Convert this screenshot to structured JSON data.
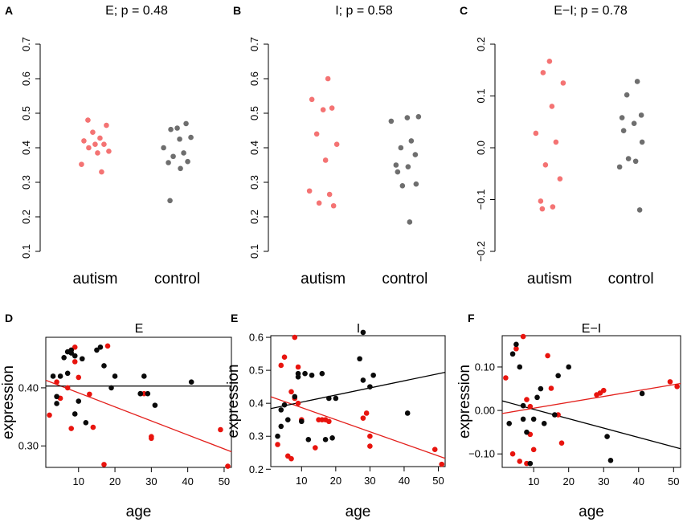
{
  "figure": {
    "colors": {
      "autism": "#f25a5a",
      "control": "#555555",
      "regression_red": "#e3201c",
      "regression_black": "#000000",
      "red_point": "#e8140e",
      "black_point": "#0a0a0a"
    }
  },
  "chart_data": [
    {
      "panel": "A",
      "type": "scatter",
      "title": "E; p = 0.48",
      "categories": [
        "autism",
        "control"
      ],
      "ylim": [
        0.1,
        0.7
      ],
      "yticks": [
        "0.1",
        "0.2",
        "0.3",
        "0.4",
        "0.5",
        "0.6",
        "0.7"
      ],
      "series": [
        {
          "name": "autism",
          "values": [
            0.48,
            0.465,
            0.445,
            0.428,
            0.42,
            0.41,
            0.41,
            0.4,
            0.39,
            0.385,
            0.352,
            0.33
          ]
        },
        {
          "name": "control",
          "values": [
            0.47,
            0.457,
            0.453,
            0.43,
            0.425,
            0.4,
            0.385,
            0.375,
            0.36,
            0.357,
            0.34,
            0.247
          ]
        }
      ]
    },
    {
      "panel": "B",
      "type": "scatter",
      "title": "I; p = 0.58",
      "categories": [
        "autism",
        "control"
      ],
      "ylim": [
        0.1,
        0.7
      ],
      "yticks": [
        "0.1",
        "0.2",
        "0.3",
        "0.4",
        "0.5",
        "0.6",
        "0.7"
      ],
      "series": [
        {
          "name": "autism",
          "values": [
            0.6,
            0.54,
            0.515,
            0.51,
            0.44,
            0.41,
            0.364,
            0.275,
            0.265,
            0.24,
            0.232
          ]
        },
        {
          "name": "control",
          "values": [
            0.49,
            0.487,
            0.477,
            0.42,
            0.4,
            0.38,
            0.35,
            0.345,
            0.33,
            0.295,
            0.29,
            0.185
          ]
        }
      ]
    },
    {
      "panel": "C",
      "type": "scatter",
      "title": "E−I; p = 0.78",
      "categories": [
        "autism",
        "control"
      ],
      "ylim": [
        -0.2,
        0.2
      ],
      "yticks": [
        "−0.2",
        "−0.1",
        "0.0",
        "0.1",
        "0.2"
      ],
      "series": [
        {
          "name": "autism",
          "values": [
            0.167,
            0.145,
            0.125,
            0.08,
            0.028,
            0.011,
            -0.033,
            -0.06,
            -0.103,
            -0.114,
            -0.118
          ]
        },
        {
          "name": "control",
          "values": [
            0.128,
            0.102,
            0.063,
            0.058,
            0.047,
            0.033,
            0.011,
            -0.021,
            -0.026,
            -0.037,
            -0.12
          ]
        }
      ]
    },
    {
      "panel": "D",
      "type": "scatter",
      "title": "E",
      "xlabel": "age",
      "ylabel": "expression",
      "xlim": [
        1,
        52
      ],
      "ylim": [
        0.263,
        0.487
      ],
      "xticks": [
        "10",
        "20",
        "30",
        "40",
        "50"
      ],
      "yticks": [
        "0.30",
        "0.40"
      ],
      "series": [
        {
          "name": "red",
          "x": [
            2,
            4,
            5,
            7,
            8,
            8,
            9,
            9,
            10,
            13,
            14,
            17,
            18,
            28,
            30,
            30,
            49,
            51
          ],
          "y": [
            0.353,
            0.41,
            0.382,
            0.4,
            0.33,
            0.465,
            0.47,
            0.445,
            0.418,
            0.389,
            0.332,
            0.268,
            0.472,
            0.39,
            0.316,
            0.313,
            0.328,
            0.265
          ]
        },
        {
          "name": "black",
          "x": [
            3,
            4,
            4,
            5,
            6,
            7,
            7,
            8,
            8,
            9,
            9,
            10,
            11,
            12,
            15,
            16,
            17,
            19,
            20,
            27,
            27,
            28,
            29,
            31,
            41
          ],
          "y": [
            0.42,
            0.385,
            0.373,
            0.42,
            0.452,
            0.425,
            0.462,
            0.46,
            0.465,
            0.355,
            0.455,
            0.377,
            0.45,
            0.34,
            0.465,
            0.47,
            0.438,
            0.4,
            0.42,
            0.39,
            0.39,
            0.42,
            0.39,
            0.37,
            0.41
          ]
        }
      ],
      "regression_lines": [
        {
          "name": "red",
          "x": [
            1,
            52
          ],
          "y": [
            0.413,
            0.29
          ]
        },
        {
          "name": "black",
          "x": [
            1,
            52
          ],
          "y": [
            0.403,
            0.403
          ]
        }
      ]
    },
    {
      "panel": "E",
      "type": "scatter",
      "title": "I",
      "xlabel": "age",
      "ylabel": "expression",
      "xlim": [
        1,
        52
      ],
      "ylim": [
        0.208,
        0.605
      ],
      "xticks": [
        "10",
        "20",
        "30",
        "40",
        "50"
      ],
      "yticks": [
        "0.2",
        "0.3",
        "0.4",
        "0.5",
        "0.6"
      ],
      "series": [
        {
          "name": "red",
          "x": [
            3,
            4,
            5,
            6,
            7,
            7,
            8,
            8,
            9,
            9,
            10,
            14,
            15,
            16,
            17,
            18,
            28,
            29,
            30,
            30,
            49,
            51
          ],
          "y": [
            0.275,
            0.515,
            0.54,
            0.24,
            0.435,
            0.232,
            0.6,
            0.415,
            0.51,
            0.4,
            0.35,
            0.265,
            0.35,
            0.35,
            0.35,
            0.345,
            0.355,
            0.37,
            0.3,
            0.27,
            0.26,
            0.215
          ]
        },
        {
          "name": "black",
          "x": [
            3,
            4,
            4,
            5,
            6,
            8,
            9,
            9,
            10,
            11,
            12,
            13,
            16,
            17,
            18,
            19,
            20,
            27,
            28,
            28,
            30,
            31,
            41
          ],
          "y": [
            0.3,
            0.33,
            0.38,
            0.395,
            0.35,
            0.42,
            0.48,
            0.49,
            0.345,
            0.49,
            0.29,
            0.485,
            0.49,
            0.29,
            0.415,
            0.295,
            0.415,
            0.535,
            0.615,
            0.47,
            0.45,
            0.485,
            0.37
          ]
        }
      ],
      "regression_lines": [
        {
          "name": "red",
          "x": [
            1,
            52
          ],
          "y": [
            0.42,
            0.233
          ]
        },
        {
          "name": "black",
          "x": [
            1,
            52
          ],
          "y": [
            0.384,
            0.494
          ]
        }
      ]
    },
    {
      "panel": "F",
      "type": "scatter",
      "title": "E−I",
      "xlabel": "age",
      "ylabel": "expression",
      "xlim": [
        1,
        52
      ],
      "ylim": [
        -0.131,
        0.172
      ],
      "xticks": [
        "10",
        "20",
        "30",
        "40",
        "50"
      ],
      "yticks": [
        "−0.10",
        "0.00",
        "0.10"
      ],
      "series": [
        {
          "name": "red",
          "x": [
            2,
            4,
            5,
            6,
            7,
            8,
            8,
            9,
            9,
            10,
            14,
            15,
            17,
            18,
            28,
            29,
            30,
            49,
            51
          ],
          "y": [
            0.075,
            -0.1,
            0.142,
            -0.117,
            0.17,
            0.025,
            -0.122,
            0.009,
            -0.055,
            -0.09,
            0.126,
            0.051,
            -0.01,
            -0.075,
            0.036,
            0.04,
            0.046,
            0.066,
            0.055
          ]
        },
        {
          "name": "black",
          "x": [
            3,
            4,
            5,
            6,
            7,
            7,
            8,
            9,
            10,
            11,
            12,
            13,
            16,
            17,
            20,
            31,
            32,
            41
          ],
          "y": [
            -0.03,
            0.13,
            0.152,
            0.1,
            0.011,
            -0.02,
            -0.05,
            -0.122,
            -0.02,
            0.03,
            0.05,
            -0.03,
            -0.01,
            0.08,
            0.1,
            -0.06,
            -0.115,
            0.039
          ]
        }
      ],
      "regression_lines": [
        {
          "name": "red",
          "x": [
            1,
            52
          ],
          "y": [
            -0.007,
            0.062
          ]
        },
        {
          "name": "black",
          "x": [
            1,
            52
          ],
          "y": [
            0.022,
            -0.088
          ]
        }
      ]
    }
  ]
}
